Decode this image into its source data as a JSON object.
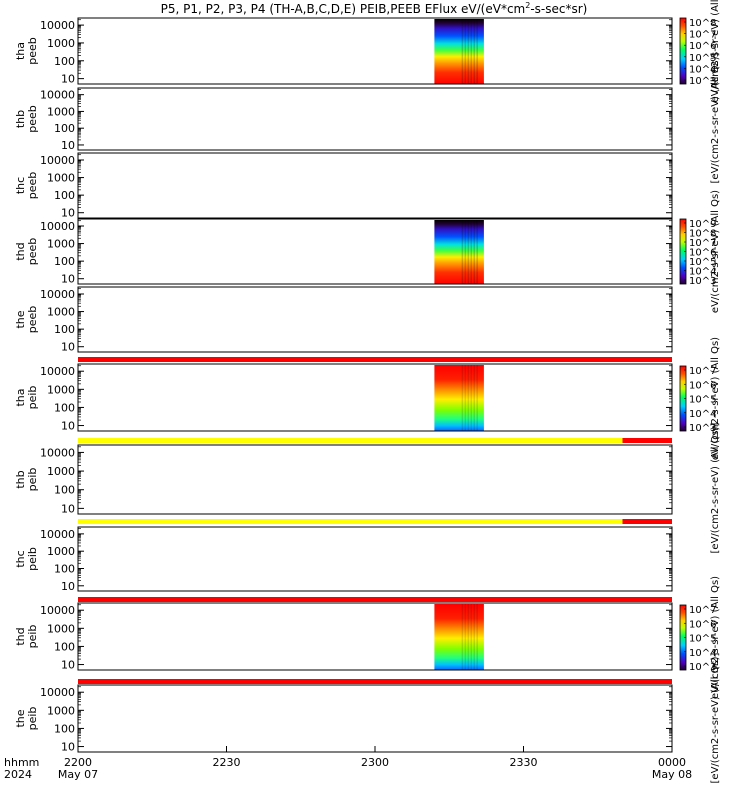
{
  "title": "P5, P1, P2, P3, P4 (TH-A,B,C,D,E) PEIB,PEEB EFlux eV/(eV*cm",
  "title_sup": "2",
  "title_end": "-s-sec*sr)",
  "time_axis": {
    "ticks": [
      "2200",
      "2230",
      "2300",
      "2330",
      "0000"
    ],
    "dates": [
      "May 07",
      "",
      "",
      "",
      "May 08"
    ],
    "row1_label": "hhmm",
    "row2_label": "2024"
  },
  "chart_data": {
    "type": "heatmap",
    "x_range": [
      "2024-05-07 22:00",
      "2024-05-08 00:00"
    ],
    "y_scale": "log",
    "energy_ticks": [
      "10",
      "100",
      "1000",
      "10000"
    ],
    "panels": [
      {
        "name": "tha peeb",
        "line1": "tha",
        "line2": "peeb",
        "has_data": true,
        "data_start": "23:12",
        "data_end": "23:22"
      },
      {
        "name": "thb peeb",
        "line1": "thb",
        "line2": "peeb",
        "has_data": false
      },
      {
        "name": "thc peeb",
        "line1": "thc",
        "line2": "peeb",
        "has_data": false
      },
      {
        "name": "thd peeb",
        "line1": "thd",
        "line2": "peeb",
        "has_data": true,
        "data_start": "23:12",
        "data_end": "23:22"
      },
      {
        "name": "the peeb",
        "line1": "the",
        "line2": "peeb",
        "has_data": false
      },
      {
        "name": "tha peib",
        "line1": "tha",
        "line2": "peib",
        "has_data": true,
        "data_start": "23:12",
        "data_end": "23:22"
      },
      {
        "name": "thb peib",
        "line1": "thb",
        "line2": "peib",
        "has_data": false
      },
      {
        "name": "thc peib",
        "line1": "thc",
        "line2": "peib",
        "has_data": false
      },
      {
        "name": "thd peib",
        "line1": "thd",
        "line2": "peib",
        "has_data": true,
        "data_start": "23:12",
        "data_end": "23:22"
      },
      {
        "name": "the peib",
        "line1": "the",
        "line2": "peib",
        "has_data": false
      }
    ],
    "quality_bars": [
      {
        "segments": [
          {
            "from": "22:00",
            "to": "24:00",
            "color": "#ff0000"
          }
        ]
      },
      {
        "segments": [
          {
            "from": "22:00",
            "to": "23:50",
            "color": "#ffff00"
          },
          {
            "from": "23:50",
            "to": "24:00",
            "color": "#ff0000"
          }
        ]
      },
      {
        "segments": [
          {
            "from": "22:00",
            "to": "23:50",
            "color": "#ffff00"
          },
          {
            "from": "23:50",
            "to": "24:00",
            "color": "#ff0000"
          }
        ]
      },
      {
        "segments": [
          {
            "from": "22:00",
            "to": "24:00",
            "color": "#ff0000"
          }
        ]
      },
      {
        "segments": [
          {
            "from": "22:00",
            "to": "24:00",
            "color": "#ff0000"
          }
        ]
      }
    ],
    "colorbars": [
      {
        "name": "colorbar-tha-peeb",
        "ticks": [
          "10^3",
          "10^4",
          "10^5",
          "10^6",
          "10^7",
          "10^8"
        ],
        "label": "eV/(cm2-s-sr-eV) (All"
      },
      {
        "name": "colorbar-thd-peeb",
        "ticks": [
          "10^3",
          "10^4",
          "10^5",
          "10^6",
          "10^7",
          "10^8",
          "10^9"
        ],
        "label": "eV/(cm2-s-sr-eV) (All Qs)"
      },
      {
        "name": "colorbar-tha-peib",
        "ticks": [
          "10^3",
          "10^4",
          "10^5",
          "10^6",
          "10^7"
        ],
        "label": "eV/(cm2-s-sr-eV) (All Qs)"
      },
      {
        "name": "colorbar-thd-peib",
        "ticks": [
          "10^3",
          "10^4",
          "10^5",
          "10^6",
          "10^7"
        ],
        "label": "eV/(cm2-s-sr-eV) (All Qs)"
      }
    ],
    "side_labels": [
      "[eV/(cm2-s-sr-eV) (All Qs)]",
      "[eV/(cm2-s-sr-eV) (All Qs)]",
      "[eV/(cm2-s-sr-eV) (All Qs)]"
    ]
  }
}
